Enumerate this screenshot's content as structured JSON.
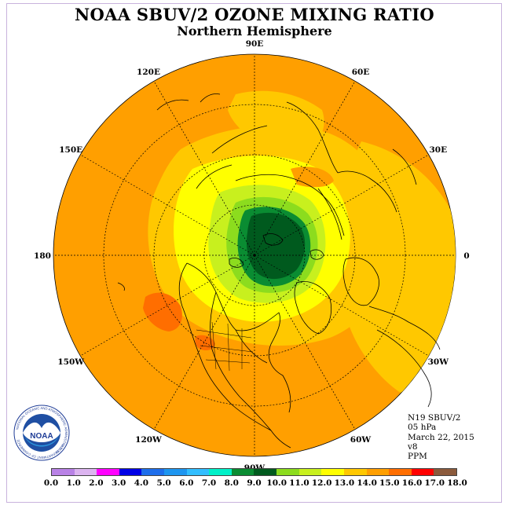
{
  "header": {
    "title": "NOAA SBUV/2 OZONE MIXING RATIO",
    "subtitle": "Northern Hemisphere"
  },
  "map": {
    "longitude_labels": [
      {
        "label": "90E",
        "lon": 90
      },
      {
        "label": "60E",
        "lon": 60
      },
      {
        "label": "30E",
        "lon": 30
      },
      {
        "label": "0",
        "lon": 0
      },
      {
        "label": "30W",
        "lon": -30
      },
      {
        "label": "60W",
        "lon": -60
      },
      {
        "label": "90W",
        "lon": -90
      },
      {
        "label": "120W",
        "lon": -120
      },
      {
        "label": "150W",
        "lon": -150
      },
      {
        "label": "180",
        "lon": 180
      },
      {
        "label": "150E",
        "lon": 150
      },
      {
        "label": "120E",
        "lon": 120
      }
    ],
    "colors": {
      "background_field": "#ff9f00",
      "ocean_outline": "#000000",
      "graticule": "#000000"
    }
  },
  "info": {
    "lines": [
      "N19 SBUV/2",
      "05 hPa",
      "March 22, 2015",
      "v8",
      "PPM"
    ]
  },
  "colorbar": {
    "colors": [
      "#b982e6",
      "#dcb4f0",
      "#ff00ff",
      "#0000e6",
      "#1e6eeb",
      "#1e96f0",
      "#32beff",
      "#00f0c8",
      "#0a8c32",
      "#005a1e",
      "#8cdc1e",
      "#c8f01e",
      "#ffff00",
      "#ffc800",
      "#ff9f00",
      "#ff6e00",
      "#ff0000",
      "#8b5a3c"
    ],
    "tick_labels": [
      "0.0",
      "1.0",
      "2.0",
      "3.0",
      "4.0",
      "5.0",
      "6.0",
      "7.0",
      "8.0",
      "9.0",
      "10.0",
      "11.0",
      "12.0",
      "13.0",
      "14.0",
      "15.0",
      "16.0",
      "17.0",
      "18.0"
    ]
  },
  "logo": {
    "text": "NOAA",
    "ring_text": "NATIONAL OCEANIC AND ATMOSPHERIC ADMINISTRATION",
    "ring_text_bottom": "U.S. DEPARTMENT OF COMMERCE"
  }
}
